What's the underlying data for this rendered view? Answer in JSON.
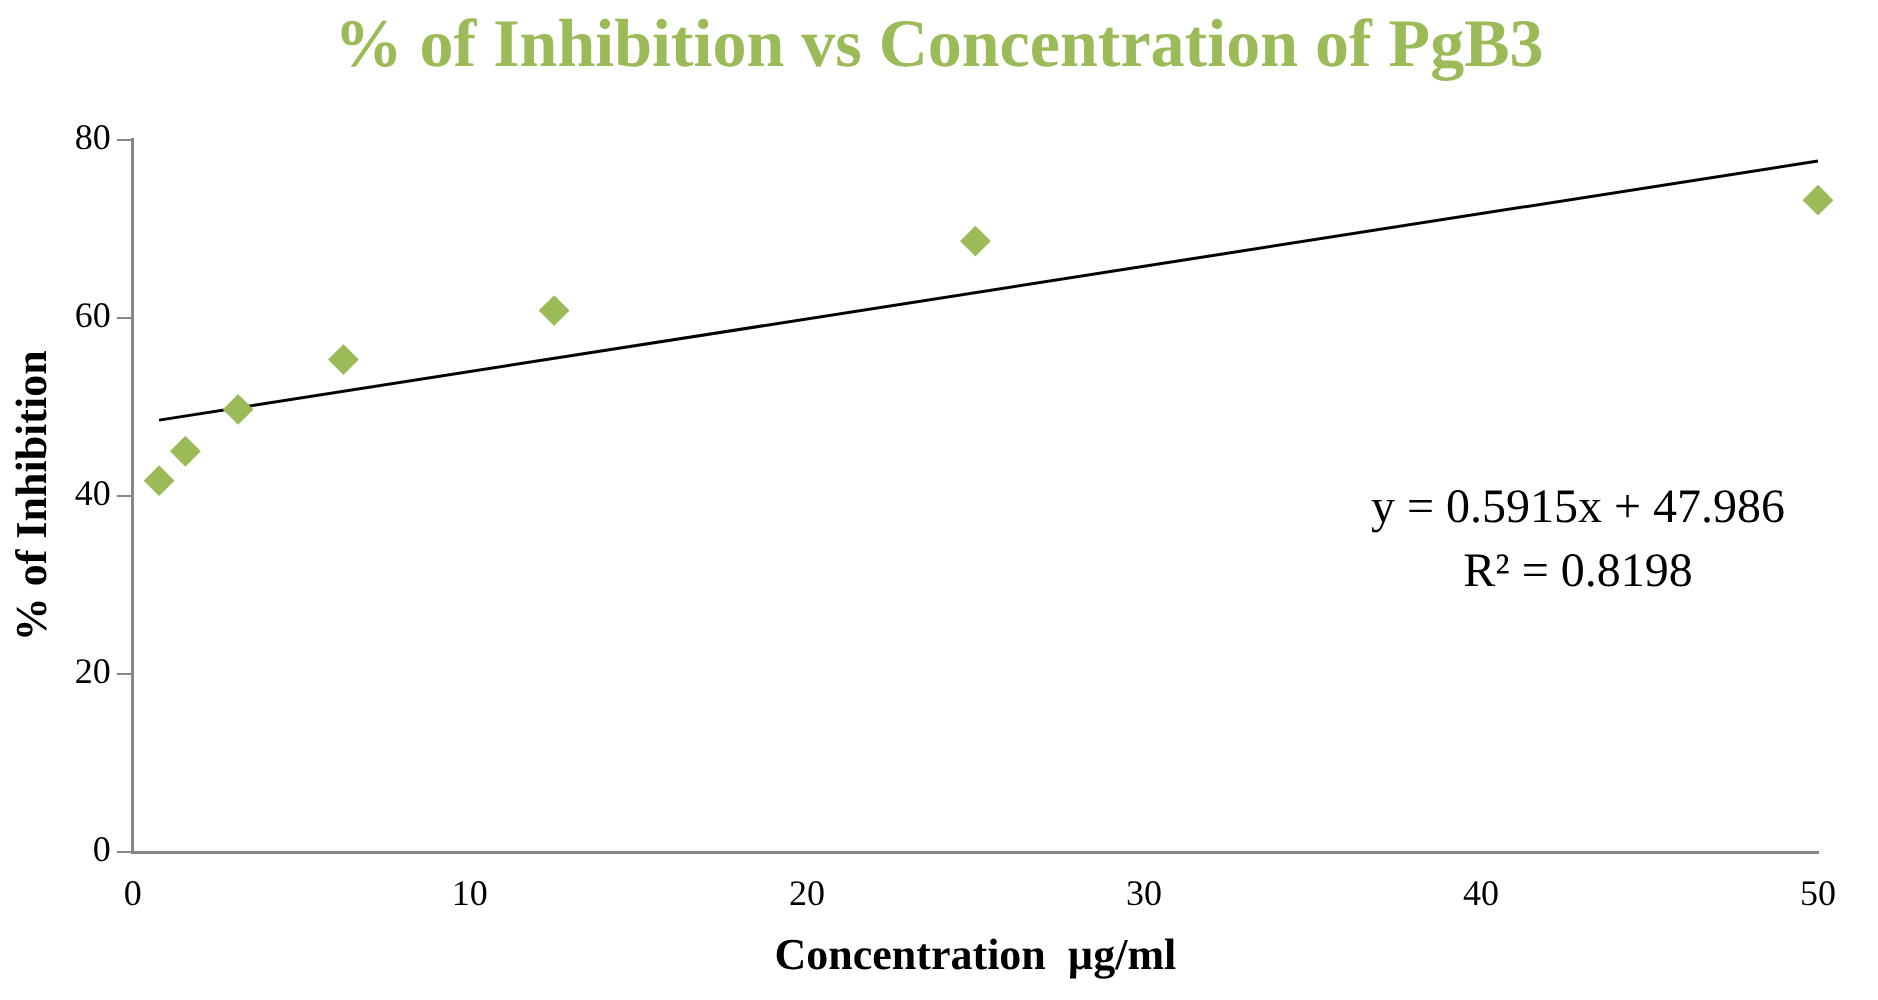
{
  "chart_data": {
    "type": "scatter",
    "title": "% of Inhibition  vs Concentration  of PgB3",
    "xlabel": "Concentration  µg/ml",
    "ylabel": "% of Inhibition",
    "series": [
      {
        "color": "#9bbb59",
        "marker": "diamond",
        "x": [
          0.78,
          1.56,
          3.125,
          6.25,
          12.5,
          25,
          50
        ],
        "values": [
          41.7,
          45.0,
          49.7,
          55.3,
          60.8,
          68.6,
          73.2
        ]
      },
      {
        "type": "line",
        "color": "#000000",
        "marker": "none",
        "x": [
          0.78,
          50
        ],
        "values": [
          48.5,
          77.6
        ]
      }
    ],
    "annotations": [
      "y = 0.5915x + 47.986",
      "R² = 0.8198"
    ],
    "xlim": [
      0,
      50
    ],
    "xticks": [
      0,
      10,
      20,
      30,
      40,
      50
    ],
    "ylim": [
      0,
      80
    ],
    "yticks": [
      0,
      20,
      40,
      60,
      80
    ],
    "grid": false,
    "legend": false
  }
}
